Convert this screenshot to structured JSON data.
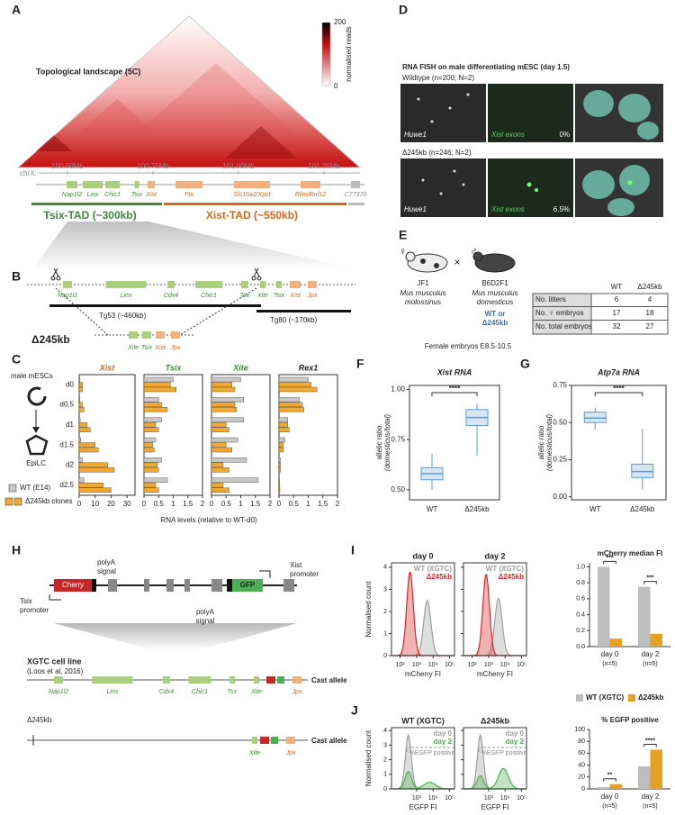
{
  "panel_labels": [
    "A",
    "B",
    "C",
    "D",
    "E",
    "F",
    "G",
    "H",
    "I",
    "J"
  ],
  "a": {
    "title": "Topological landscape (5C)",
    "colorbar_max": 200,
    "colorbar_min": 0,
    "colorbar_label": "normalised reads",
    "chrom": "chrX:",
    "positions": [
      "100.50Mb",
      "100.75Mb",
      "101.00Mb",
      "101.25Mb"
    ],
    "genes": [
      "Nap1l2",
      "Linx",
      "Chic1",
      "Tsix",
      "Xist",
      "Ftx",
      "Slc16a2/Xpct",
      "Rlim/Rnf12",
      "C77370"
    ],
    "tads": [
      "Tsix-TAD (~300kb)",
      "Xist-TAD (~550kb)"
    ]
  },
  "b": {
    "genes": [
      "Nap1l2",
      "Linx",
      "Cdx4",
      "Chic1",
      "Tsx",
      "Xite",
      "Tsix",
      "Xist",
      "Jpx"
    ],
    "transgenes": [
      "Tg53 (~460kb)",
      "Tg80 (~170kb)"
    ],
    "deletion": "Δ245kb",
    "deletion_genes": [
      "Xite",
      "Tsix",
      "Xist",
      "Jpx"
    ]
  },
  "c": {
    "cells": [
      "male mESCs",
      "EpiLC"
    ],
    "legend": [
      "WT (E14)",
      "Δ245kb clones"
    ],
    "colors": [
      "#c8c8c8",
      "#f0a830"
    ],
    "categories": [
      "d0",
      "d0.5",
      "d1",
      "d1.5",
      "d2",
      "d2.5"
    ],
    "xlabel": "RNA levels (relative to WT-d0)",
    "charts": [
      {
        "type": "hbar",
        "title": "Xist",
        "title_color": "#d2691e",
        "xlim": [
          0,
          35
        ],
        "xticks": [
          0,
          10,
          20,
          30
        ],
        "wt": [
          0.5,
          0.5,
          0.6,
          1,
          2,
          3
        ],
        "clones": [
          [
            2,
            2,
            5,
            10,
            18,
            15
          ],
          [
            2,
            3,
            7,
            12,
            22,
            20
          ]
        ]
      },
      {
        "type": "hbar",
        "title": "Tsix",
        "title_color": "#3d8b37",
        "xlim": [
          0,
          2
        ],
        "xticks": [
          0,
          0.5,
          1,
          1.5,
          2
        ],
        "wt": [
          1,
          0.5,
          0.6,
          0.4,
          0.6,
          0.8
        ],
        "clones": [
          [
            0.9,
            0.6,
            0.4,
            0.3,
            0.45,
            0.4
          ],
          [
            1.1,
            0.8,
            0.5,
            0.35,
            0.5,
            0.5
          ]
        ]
      },
      {
        "type": "hbar",
        "title": "Xite",
        "title_color": "#3d8b37",
        "xlim": [
          0,
          2
        ],
        "xticks": [
          0,
          0.5,
          1,
          1.5,
          2
        ],
        "wt": [
          1,
          1.1,
          1.1,
          0.9,
          1.2,
          1.6
        ],
        "clones": [
          [
            0.7,
            0.8,
            0.5,
            0.5,
            0.4,
            0.4
          ],
          [
            0.8,
            0.85,
            0.6,
            0.7,
            0.6,
            0.6
          ]
        ]
      },
      {
        "type": "hbar",
        "title": "Rex1",
        "title_color": "#222222",
        "xlim": [
          0,
          2
        ],
        "xticks": [
          0,
          0.5,
          1,
          1.5,
          2
        ],
        "wt": [
          1,
          0.7,
          0.3,
          0.2,
          0.05,
          0.02
        ],
        "clones": [
          [
            1.1,
            0.8,
            0.3,
            0.15,
            0.05,
            0.02
          ],
          [
            1.3,
            0.85,
            0.35,
            0.15,
            0.05,
            0.03
          ]
        ]
      }
    ]
  },
  "d": {
    "title": "RNA FISH on male differentiating mESC (day 1.5)",
    "rows": [
      {
        "label": "Wildtype (n=200; N=2)",
        "probe1": "Huwe1",
        "probe2": "Xist exons",
        "percent": "0%"
      },
      {
        "label": "Δ245kb (n=246; N=2)",
        "probe1": "Huwe1",
        "probe2": "Xist exons",
        "percent": "6.5%"
      }
    ]
  },
  "e": {
    "mother": {
      "sex": "♀",
      "name": "JF1",
      "species": [
        "Mus musculus",
        "molossinus"
      ]
    },
    "cross": "×",
    "father": {
      "sex": "♂",
      "name": "B6D2F1",
      "species": [
        "Mus musculus",
        "domesticus"
      ],
      "genotype": [
        "WT or",
        "Δ245kb"
      ]
    },
    "note": "Female embryos E8.5-10.5",
    "table": {
      "header": [
        "WT",
        "Δ245kb"
      ],
      "rows": [
        [
          "No. litters",
          6,
          4
        ],
        [
          "No. ♀ embryos",
          17,
          18
        ],
        [
          "No. total embryos",
          32,
          27
        ]
      ]
    }
  },
  "f": {
    "type": "box",
    "title": "Xist RNA",
    "ylabel": [
      "allelic ratio",
      "(domesticus/total)"
    ],
    "ylim": [
      0.45,
      1.02
    ],
    "yticks": [
      {
        "value": 0.5,
        "label": "0.50"
      },
      {
        "value": 0.75,
        "label": "0.75"
      },
      {
        "value": 1,
        "label": "1.00"
      }
    ],
    "categories": [
      "WT",
      "Δ245kb"
    ],
    "significance": "****",
    "boxes": [
      {
        "min": 0.5,
        "q1": 0.55,
        "median": 0.58,
        "q3": 0.61,
        "max": 0.68
      },
      {
        "min": 0.67,
        "q1": 0.82,
        "median": 0.86,
        "q3": 0.9,
        "max": 0.93
      }
    ]
  },
  "g": {
    "type": "box",
    "title": "Atp7a RNA",
    "ylabel": [
      "allelic ratio",
      "(domesticus/total)"
    ],
    "ylim": [
      -0.02,
      0.75
    ],
    "yticks": [
      {
        "value": 0,
        "label": "0.00"
      },
      {
        "value": 0.25,
        "label": "0.25"
      },
      {
        "value": 0.5,
        "label": "0.50"
      },
      {
        "value": 0.75,
        "label": "0.75"
      }
    ],
    "categories": [
      "WT",
      "Δ245kb"
    ],
    "significance": "****",
    "boxes": [
      {
        "min": 0.45,
        "q1": 0.5,
        "median": 0.53,
        "q3": 0.57,
        "max": 0.6
      },
      {
        "min": 0.05,
        "q1": 0.13,
        "median": 0.17,
        "q3": 0.22,
        "max": 0.46
      }
    ]
  },
  "h": {
    "tsix_promoter": [
      "Tsix",
      "promoter"
    ],
    "cherry": "Cherry",
    "polya_1": [
      "polyA",
      "signal"
    ],
    "gfp": "GFP",
    "xist_promoter": [
      "Xist",
      "promoter"
    ],
    "polya_2": [
      "polyA",
      "signal"
    ],
    "cell_line": "XGTC cell line",
    "citation": "(Loos et al, 2016)",
    "genes": [
      "Nap1l2",
      "Linx",
      "Cdx4",
      "Chic1",
      "Tsx",
      "Xite",
      "Jpx"
    ],
    "allele_1": "Cast allele",
    "deletion": "Δ245kb",
    "deletion_genes": [
      "Xite",
      "Jpx"
    ],
    "allele_2": "Cast allele"
  },
  "i": {
    "ylabel": "Normalised count",
    "ylim": [
      0,
      4.2
    ],
    "yticks": [
      0,
      1,
      2,
      3,
      4
    ],
    "xlim": [
      30,
      200000
    ],
    "log": true,
    "xticks": [
      {
        "value": 100,
        "label": "10²"
      },
      {
        "value": 1000,
        "label": "10³"
      },
      {
        "value": 10000,
        "label": "10⁴"
      },
      {
        "value": 100000,
        "label": "10⁵"
      }
    ],
    "legend_colors": [
      "#9e9e9e",
      "#d62828"
    ],
    "plots": [
      {
        "title": "day 0",
        "legend": [
          "WT (XGTC)",
          "Δ245kb"
        ],
        "xlabel": "mCherry FI"
      },
      {
        "title": "day 2",
        "legend": [
          "WT (XGTC)",
          "Δ245kb"
        ],
        "xlabel": "mCherry FI"
      }
    ],
    "bar": {
      "type": "bar",
      "title": "mCherry median FI",
      "ylim": [
        0,
        1.05
      ],
      "yticks": [
        {
          "value": 0,
          "label": "0.0"
        },
        {
          "value": 0.2,
          "label": "0.2"
        },
        {
          "value": 0.4,
          "label": "0.4"
        },
        {
          "value": 0.6,
          "label": "0.6"
        },
        {
          "value": 0.8,
          "label": "0.8"
        },
        {
          "value": 1,
          "label": "1.0"
        }
      ],
      "categories": [
        "day 0",
        "day 2"
      ],
      "n": [
        "(n=5)",
        "(n=5)"
      ],
      "significance": [
        "***",
        "***"
      ],
      "series": [
        {
          "name": "WT (XGTC)",
          "color": "#bdbdbd",
          "values": [
            1,
            0.75
          ]
        },
        {
          "name": "Δ245kb",
          "color": "#e8a020",
          "values": [
            0.1,
            0.16
          ]
        }
      ]
    }
  },
  "j": {
    "ylabel": "Normalised count",
    "ylim": [
      0,
      4.2
    ],
    "yticks": [
      0,
      1,
      2,
      3,
      4
    ],
    "xlim": [
      30,
      200000
    ],
    "log": true,
    "xticks": [
      {
        "value": 1000,
        "label": "10³"
      },
      {
        "value": 10000,
        "label": "10⁴"
      },
      {
        "value": 100000,
        "label": "10⁵"
      }
    ],
    "legend_colors": [
      "#9e9e9e",
      "#4caf50"
    ],
    "plots": [
      {
        "title": "WT (XGTC)",
        "legend": [
          "day 0",
          "day 2"
        ],
        "gate": "%EGFP positive",
        "xlabel": "EGFP FI"
      },
      {
        "title": "Δ245kb",
        "legend": [
          "day 0",
          "day 2"
        ],
        "gate": "%EGFP positive",
        "xlabel": "EGFP FI"
      }
    ],
    "bar": {
      "type": "bar",
      "title": "% EGFP positive",
      "ylim": [
        0,
        100
      ],
      "yticks": [
        0,
        20,
        40,
        60,
        80,
        100
      ],
      "categories": [
        "day 0",
        "day 2"
      ],
      "n": [
        "(n=5)",
        "(n=5)"
      ],
      "significance": [
        "**",
        "****"
      ],
      "series": [
        {
          "color": "#bdbdbd",
          "values": [
            3,
            38
          ]
        },
        {
          "color": "#e8a020",
          "values": [
            8,
            66
          ]
        }
      ]
    }
  }
}
